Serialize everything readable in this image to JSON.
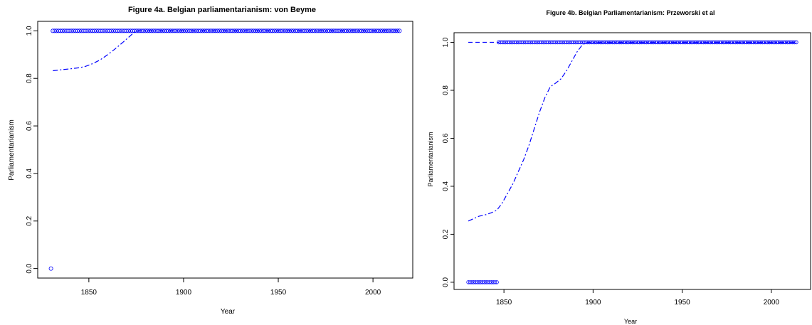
{
  "colors": {
    "series": "#0000ff",
    "axis": "#000000",
    "background": "#ffffff"
  },
  "chart_data": [
    {
      "type": "scatter",
      "title": "Figure 4a. Belgian parliamentarianism: von Beyme",
      "xlabel": "Year",
      "ylabel": "Parliamentarianism",
      "xlim": [
        1823,
        2021
      ],
      "ylim": [
        -0.04,
        1.04
      ],
      "xticks": [
        "1850",
        "1900",
        "1950",
        "2000"
      ],
      "yticks": [
        "0.0",
        "0.2",
        "0.4",
        "0.6",
        "0.8",
        "1.0"
      ],
      "grid": false,
      "legend": "none",
      "series": [
        {
          "kind": "points",
          "marker": "circle-open",
          "values": [
            [
              1830,
              0
            ],
            {
              "from": 1831,
              "to": 2014,
              "y": 1
            }
          ]
        },
        {
          "kind": "line",
          "style": "dashdot",
          "values": [
            [
              1831,
              0.832
            ],
            [
              1835,
              0.836
            ],
            [
              1840,
              0.84
            ],
            [
              1845,
              0.845
            ],
            [
              1848,
              0.85
            ],
            [
              1852,
              0.862
            ],
            [
              1856,
              0.878
            ],
            [
              1860,
              0.9
            ],
            [
              1864,
              0.925
            ],
            [
              1868,
              0.952
            ],
            [
              1872,
              0.98
            ],
            [
              1874,
              0.995
            ],
            [
              1876,
              1.0
            ],
            [
              2014,
              1.0
            ]
          ]
        }
      ]
    },
    {
      "type": "scatter",
      "title": "Figure 4b. Belgian Parliamentarianism: Przeworski et al",
      "xlabel": "Year",
      "ylabel": "Parliamentarianism",
      "xlim": [
        1822,
        2022
      ],
      "ylim": [
        -0.03,
        1.04
      ],
      "xticks": [
        "1850",
        "1900",
        "1950",
        "2000"
      ],
      "yticks": [
        "0.0",
        "0.2",
        "0.4",
        "0.6",
        "0.8",
        "1.0"
      ],
      "grid": false,
      "legend": "none",
      "series": [
        {
          "kind": "points",
          "marker": "circle-open",
          "values": [
            {
              "from": 1830,
              "to": 1846,
              "y": 0
            },
            {
              "from": 1847,
              "to": 2014,
              "y": 1
            }
          ]
        },
        {
          "kind": "line",
          "style": "dashed",
          "values": [
            [
              1830,
              1.0
            ],
            [
              1847,
              1.0
            ]
          ]
        },
        {
          "kind": "line",
          "style": "dashdot",
          "values": [
            [
              1830,
              0.255
            ],
            [
              1833,
              0.265
            ],
            [
              1836,
              0.275
            ],
            [
              1840,
              0.282
            ],
            [
              1843,
              0.29
            ],
            [
              1846,
              0.3
            ],
            [
              1849,
              0.33
            ],
            [
              1852,
              0.37
            ],
            [
              1855,
              0.41
            ],
            [
              1858,
              0.46
            ],
            [
              1861,
              0.51
            ],
            [
              1864,
              0.57
            ],
            [
              1867,
              0.64
            ],
            [
              1870,
              0.71
            ],
            [
              1873,
              0.77
            ],
            [
              1876,
              0.815
            ],
            [
              1879,
              0.83
            ],
            [
              1882,
              0.848
            ],
            [
              1885,
              0.88
            ],
            [
              1888,
              0.92
            ],
            [
              1891,
              0.96
            ],
            [
              1894,
              0.99
            ],
            [
              1897,
              1.0
            ],
            [
              2014,
              1.0
            ]
          ]
        }
      ]
    }
  ]
}
